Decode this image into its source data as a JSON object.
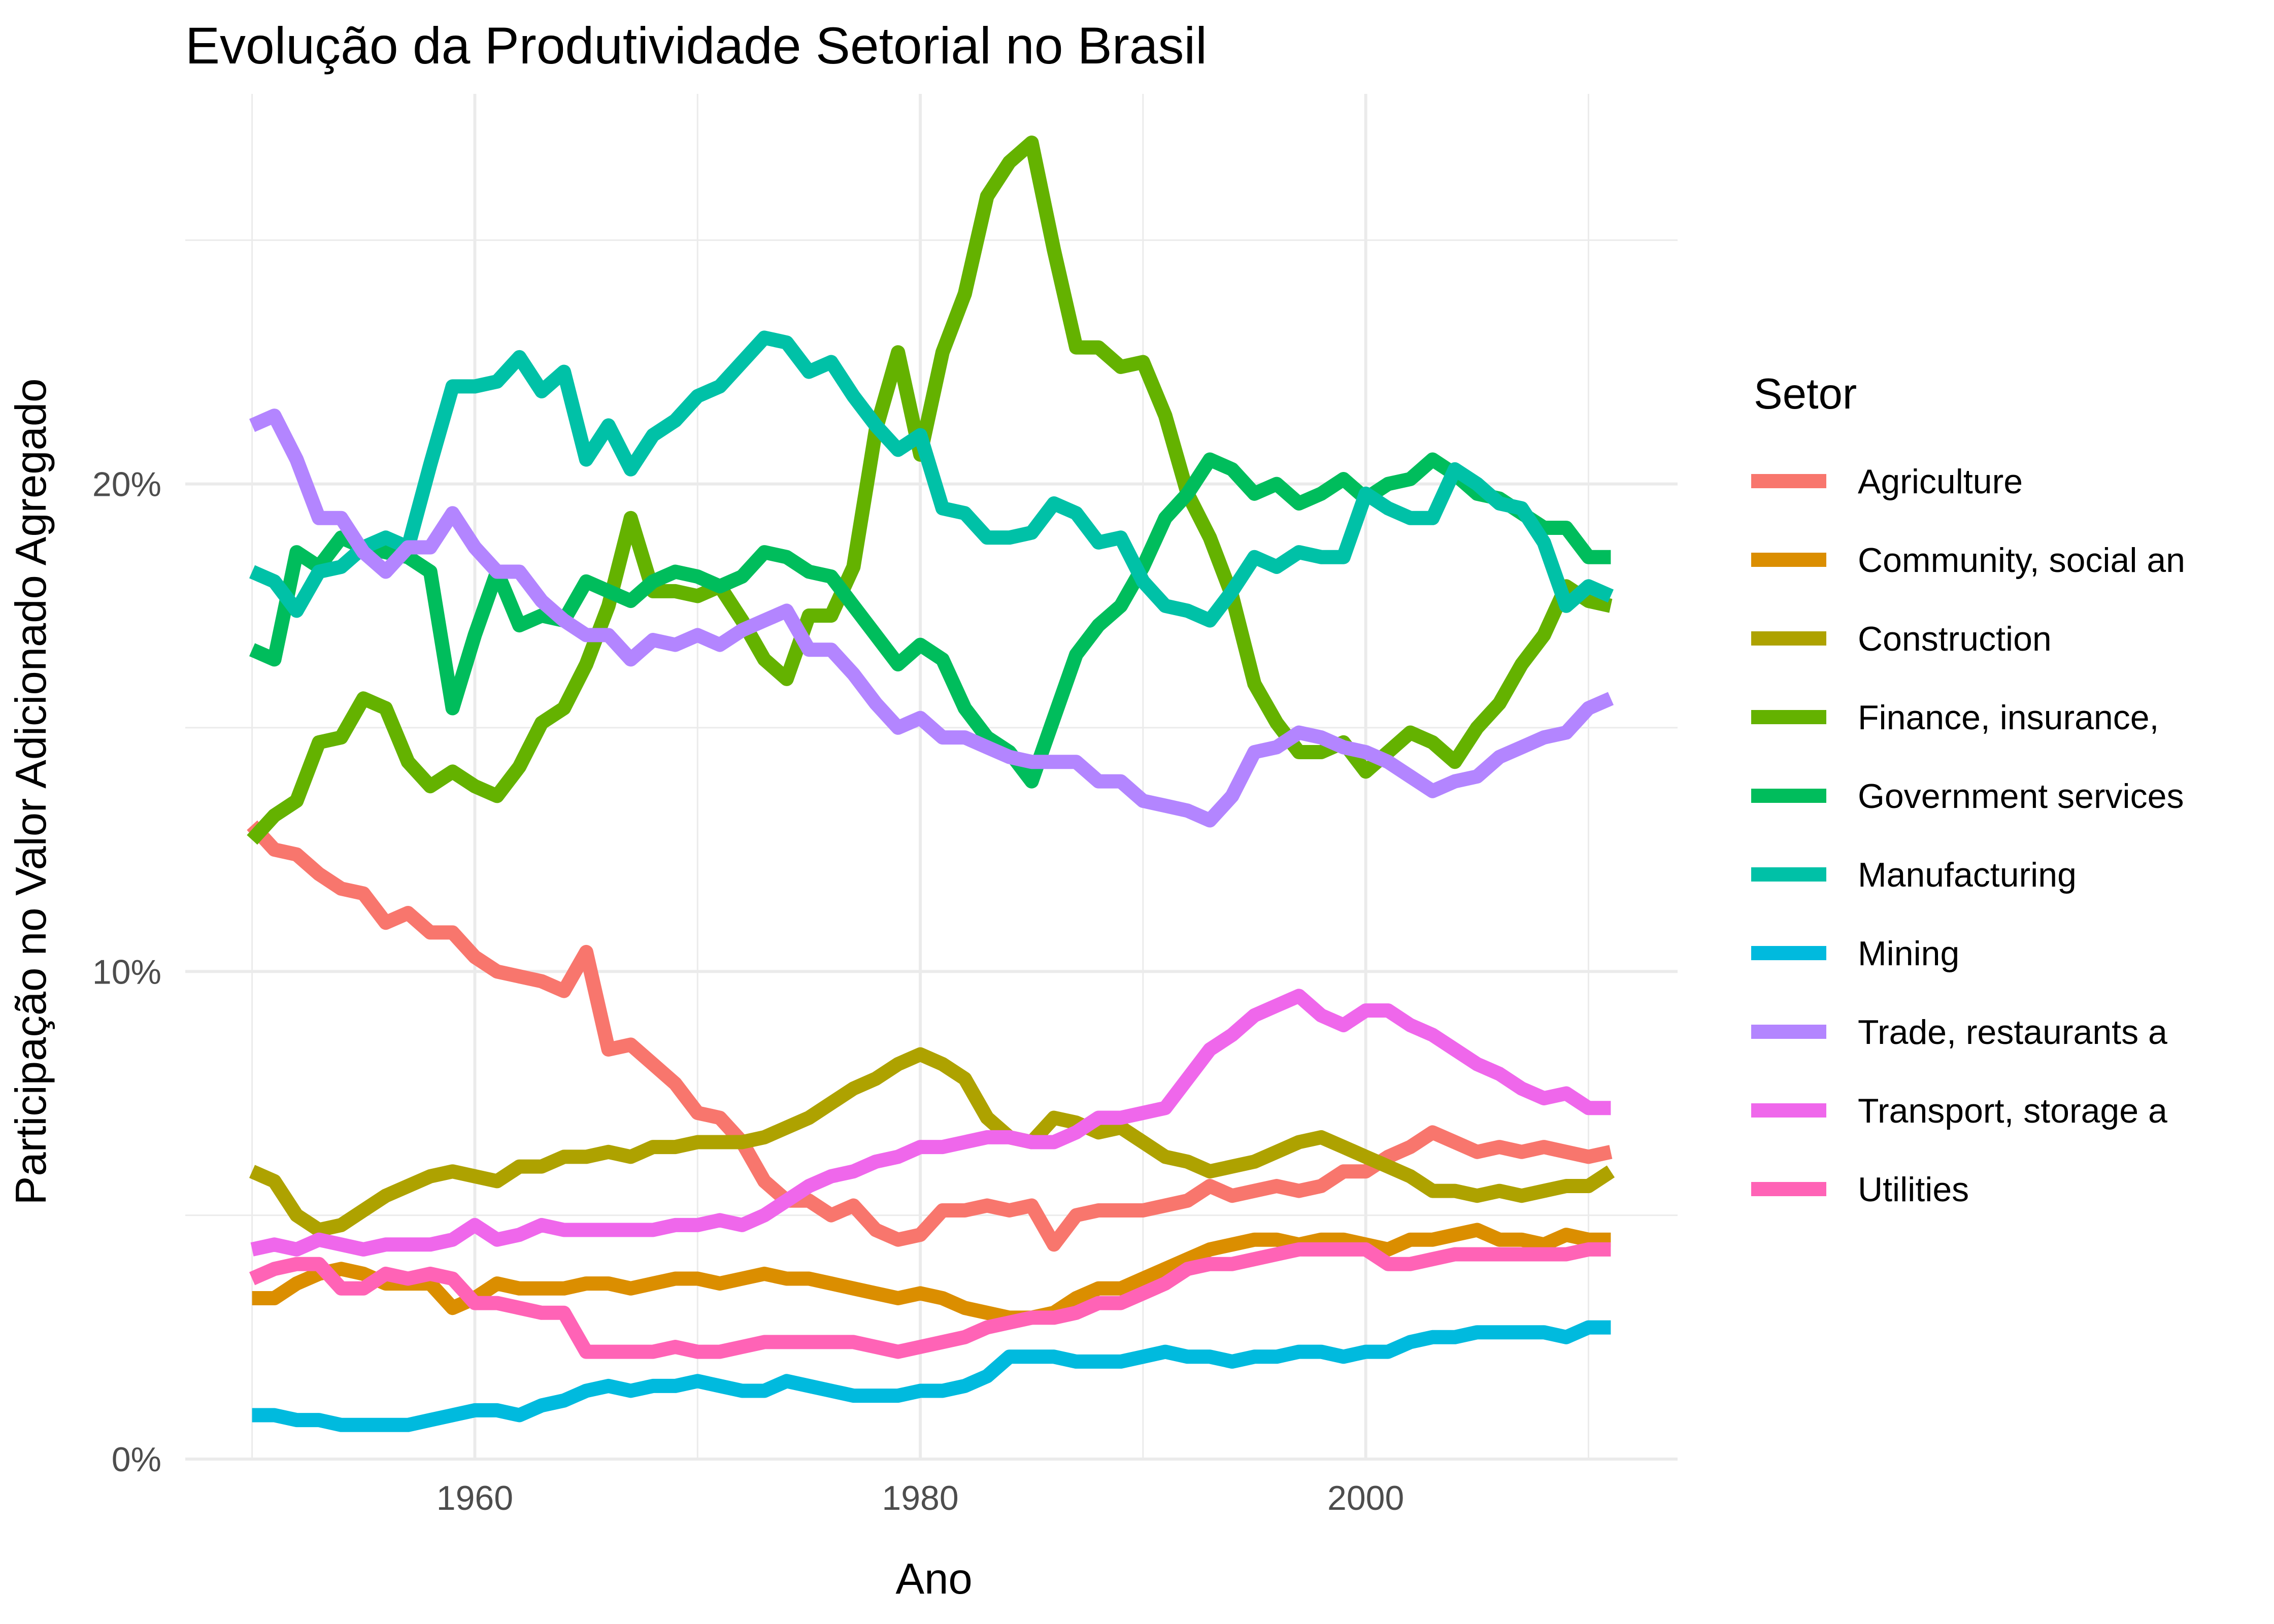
{
  "chart_data": {
    "type": "line",
    "title": "Evolução da Produtividade Setorial no Brasil",
    "xlabel": "Ano",
    "ylabel": "Participação no Valor Adicionado Agregado",
    "legend_title": "Setor",
    "legend_position": "right",
    "grid": true,
    "xlim": [
      1947,
      2014
    ],
    "ylim": [
      0,
      28
    ],
    "x_ticks": [
      1960,
      1980,
      2000
    ],
    "x_tick_labels": [
      "1960",
      "1980",
      "2000"
    ],
    "y_ticks": [
      0,
      10,
      20
    ],
    "y_tick_labels": [
      "0%",
      "10%",
      "20%"
    ],
    "x": [
      1950,
      1951,
      1952,
      1953,
      1954,
      1955,
      1956,
      1957,
      1958,
      1959,
      1960,
      1961,
      1962,
      1963,
      1964,
      1965,
      1966,
      1967,
      1968,
      1969,
      1970,
      1971,
      1972,
      1973,
      1974,
      1975,
      1976,
      1977,
      1978,
      1979,
      1980,
      1981,
      1982,
      1983,
      1984,
      1985,
      1986,
      1987,
      1988,
      1989,
      1990,
      1991,
      1992,
      1993,
      1994,
      1995,
      1996,
      1997,
      1998,
      1999,
      2000,
      2001,
      2002,
      2003,
      2004,
      2005,
      2006,
      2007,
      2008,
      2009,
      2010,
      2011
    ],
    "series": [
      {
        "name": "Agriculture",
        "color": "#F8766D",
        "values": [
          13.0,
          12.5,
          12.4,
          12.0,
          11.7,
          11.6,
          11.0,
          11.2,
          10.8,
          10.8,
          10.3,
          10.0,
          9.9,
          9.8,
          9.6,
          10.4,
          8.4,
          8.5,
          8.1,
          7.7,
          7.1,
          7.0,
          6.5,
          5.7,
          5.3,
          5.3,
          5.0,
          5.2,
          4.7,
          4.5,
          4.6,
          5.1,
          5.1,
          5.2,
          5.1,
          5.2,
          4.4,
          5.0,
          5.1,
          5.1,
          5.1,
          5.2,
          5.3,
          5.6,
          5.4,
          5.5,
          5.6,
          5.5,
          5.6,
          5.9,
          5.9,
          6.2,
          6.4,
          6.7,
          6.5,
          6.3,
          6.4,
          6.3,
          6.4,
          6.3,
          6.2,
          6.3
        ]
      },
      {
        "name": "Community, social an",
        "color": "#DB8E00",
        "values": [
          3.3,
          3.3,
          3.6,
          3.8,
          3.9,
          3.8,
          3.6,
          3.6,
          3.6,
          3.1,
          3.3,
          3.6,
          3.5,
          3.5,
          3.5,
          3.6,
          3.6,
          3.5,
          3.6,
          3.7,
          3.7,
          3.6,
          3.7,
          3.8,
          3.7,
          3.7,
          3.6,
          3.5,
          3.4,
          3.3,
          3.4,
          3.3,
          3.1,
          3.0,
          2.9,
          2.9,
          3.0,
          3.3,
          3.5,
          3.5,
          3.7,
          3.9,
          4.1,
          4.3,
          4.4,
          4.5,
          4.5,
          4.4,
          4.5,
          4.5,
          4.4,
          4.3,
          4.5,
          4.5,
          4.6,
          4.7,
          4.5,
          4.5,
          4.4,
          4.6,
          4.5,
          4.5
        ]
      },
      {
        "name": "Construction",
        "color": "#AEA200",
        "values": [
          5.9,
          5.7,
          5.0,
          4.7,
          4.8,
          5.1,
          5.4,
          5.6,
          5.8,
          5.9,
          5.8,
          5.7,
          6.0,
          6.0,
          6.2,
          6.2,
          6.3,
          6.2,
          6.4,
          6.4,
          6.5,
          6.5,
          6.5,
          6.6,
          6.8,
          7.0,
          7.3,
          7.6,
          7.8,
          8.1,
          8.3,
          8.1,
          7.8,
          7.0,
          6.6,
          6.5,
          7.0,
          6.9,
          6.7,
          6.8,
          6.5,
          6.2,
          6.1,
          5.9,
          6.0,
          6.1,
          6.3,
          6.5,
          6.6,
          6.4,
          6.2,
          6.0,
          5.8,
          5.5,
          5.5,
          5.4,
          5.5,
          5.4,
          5.5,
          5.6,
          5.6,
          5.9
        ]
      },
      {
        "name": "Finance, insurance,",
        "color": "#64B200",
        "values": [
          12.7,
          13.2,
          13.5,
          14.7,
          14.8,
          15.6,
          15.4,
          14.3,
          13.8,
          14.1,
          13.8,
          13.6,
          14.2,
          15.1,
          15.4,
          16.3,
          17.5,
          19.3,
          17.8,
          17.8,
          17.7,
          17.9,
          17.2,
          16.4,
          16.0,
          17.3,
          17.3,
          18.3,
          21.1,
          22.7,
          20.6,
          22.7,
          23.9,
          25.9,
          26.6,
          27.0,
          24.8,
          22.8,
          22.8,
          22.4,
          22.5,
          21.4,
          19.8,
          18.9,
          17.7,
          15.9,
          15.1,
          14.5,
          14.5,
          14.7,
          14.1,
          14.5,
          14.9,
          14.7,
          14.3,
          15.0,
          15.5,
          16.3,
          16.9,
          17.9,
          17.6,
          17.5
        ]
      },
      {
        "name": "Government services",
        "color": "#00BD5C",
        "values": [
          16.6,
          16.4,
          18.6,
          18.3,
          18.9,
          18.7,
          18.6,
          18.5,
          18.2,
          15.4,
          16.9,
          18.2,
          17.1,
          17.3,
          17.2,
          18.0,
          17.8,
          17.6,
          18.0,
          18.2,
          18.1,
          17.9,
          18.1,
          18.6,
          18.5,
          18.2,
          18.1,
          17.5,
          16.9,
          16.3,
          16.7,
          16.4,
          15.4,
          14.8,
          14.5,
          13.9,
          15.2,
          16.5,
          17.1,
          17.5,
          18.3,
          19.3,
          19.8,
          20.5,
          20.3,
          19.8,
          20.0,
          19.6,
          19.8,
          20.1,
          19.7,
          20.0,
          20.1,
          20.5,
          20.2,
          19.8,
          19.7,
          19.4,
          19.1,
          19.1,
          18.5,
          18.5
        ]
      },
      {
        "name": "Manufacturing",
        "color": "#00C1A7",
        "values": [
          18.2,
          18.0,
          17.4,
          18.2,
          18.3,
          18.7,
          18.9,
          18.7,
          20.4,
          22.0,
          22.0,
          22.1,
          22.6,
          21.9,
          22.3,
          20.5,
          21.2,
          20.3,
          21.0,
          21.3,
          21.8,
          22.0,
          22.5,
          23.0,
          22.9,
          22.3,
          22.5,
          21.8,
          21.2,
          20.7,
          21.0,
          19.5,
          19.4,
          18.9,
          18.9,
          19.0,
          19.6,
          19.4,
          18.8,
          18.9,
          18.0,
          17.5,
          17.4,
          17.2,
          17.8,
          18.5,
          18.3,
          18.6,
          18.5,
          18.5,
          19.8,
          19.5,
          19.3,
          19.3,
          20.3,
          20.0,
          19.6,
          19.5,
          18.8,
          17.5,
          17.9,
          17.7
        ]
      },
      {
        "name": "Mining",
        "color": "#00BADE",
        "values": [
          0.9,
          0.9,
          0.8,
          0.8,
          0.7,
          0.7,
          0.7,
          0.7,
          0.8,
          0.9,
          1.0,
          1.0,
          0.9,
          1.1,
          1.2,
          1.4,
          1.5,
          1.4,
          1.5,
          1.5,
          1.6,
          1.5,
          1.4,
          1.4,
          1.6,
          1.5,
          1.4,
          1.3,
          1.3,
          1.3,
          1.4,
          1.4,
          1.5,
          1.7,
          2.1,
          2.1,
          2.1,
          2.0,
          2.0,
          2.0,
          2.1,
          2.2,
          2.1,
          2.1,
          2.0,
          2.1,
          2.1,
          2.2,
          2.2,
          2.1,
          2.2,
          2.2,
          2.4,
          2.5,
          2.5,
          2.6,
          2.6,
          2.6,
          2.6,
          2.5,
          2.7,
          2.7
        ]
      },
      {
        "name": "Trade, restaurants a",
        "color": "#B385FF",
        "values": [
          21.2,
          21.4,
          20.5,
          19.3,
          19.3,
          18.6,
          18.2,
          18.7,
          18.7,
          19.4,
          18.7,
          18.2,
          18.2,
          17.6,
          17.2,
          16.9,
          16.9,
          16.4,
          16.8,
          16.7,
          16.9,
          16.7,
          17.0,
          17.2,
          17.4,
          16.6,
          16.6,
          16.1,
          15.5,
          15.0,
          15.2,
          14.8,
          14.8,
          14.6,
          14.4,
          14.3,
          14.3,
          14.3,
          13.9,
          13.9,
          13.5,
          13.4,
          13.3,
          13.1,
          13.6,
          14.5,
          14.6,
          14.9,
          14.8,
          14.6,
          14.5,
          14.3,
          14.0,
          13.7,
          13.9,
          14.0,
          14.4,
          14.6,
          14.8,
          14.9,
          15.4,
          15.6
        ]
      },
      {
        "name": "Transport, storage a",
        "color": "#EF67EB",
        "values": [
          4.3,
          4.4,
          4.3,
          4.5,
          4.4,
          4.3,
          4.4,
          4.4,
          4.4,
          4.5,
          4.8,
          4.5,
          4.6,
          4.8,
          4.7,
          4.7,
          4.7,
          4.7,
          4.7,
          4.8,
          4.8,
          4.9,
          4.8,
          5.0,
          5.3,
          5.6,
          5.8,
          5.9,
          6.1,
          6.2,
          6.4,
          6.4,
          6.5,
          6.6,
          6.6,
          6.5,
          6.5,
          6.7,
          7.0,
          7.0,
          7.1,
          7.2,
          7.8,
          8.4,
          8.7,
          9.1,
          9.3,
          9.5,
          9.1,
          8.9,
          9.2,
          9.2,
          8.9,
          8.7,
          8.4,
          8.1,
          7.9,
          7.6,
          7.4,
          7.5,
          7.2,
          7.2
        ]
      },
      {
        "name": "Utilities",
        "color": "#FF63B6",
        "values": [
          3.7,
          3.9,
          4.0,
          4.0,
          3.5,
          3.5,
          3.8,
          3.7,
          3.8,
          3.7,
          3.2,
          3.2,
          3.1,
          3.0,
          3.0,
          2.2,
          2.2,
          2.2,
          2.2,
          2.3,
          2.2,
          2.2,
          2.3,
          2.4,
          2.4,
          2.4,
          2.4,
          2.4,
          2.3,
          2.2,
          2.3,
          2.4,
          2.5,
          2.7,
          2.8,
          2.9,
          2.9,
          3.0,
          3.2,
          3.2,
          3.4,
          3.6,
          3.9,
          4.0,
          4.0,
          4.1,
          4.2,
          4.3,
          4.3,
          4.3,
          4.3,
          4.0,
          4.0,
          4.1,
          4.2,
          4.2,
          4.2,
          4.2,
          4.2,
          4.2,
          4.3,
          4.3
        ]
      }
    ]
  }
}
